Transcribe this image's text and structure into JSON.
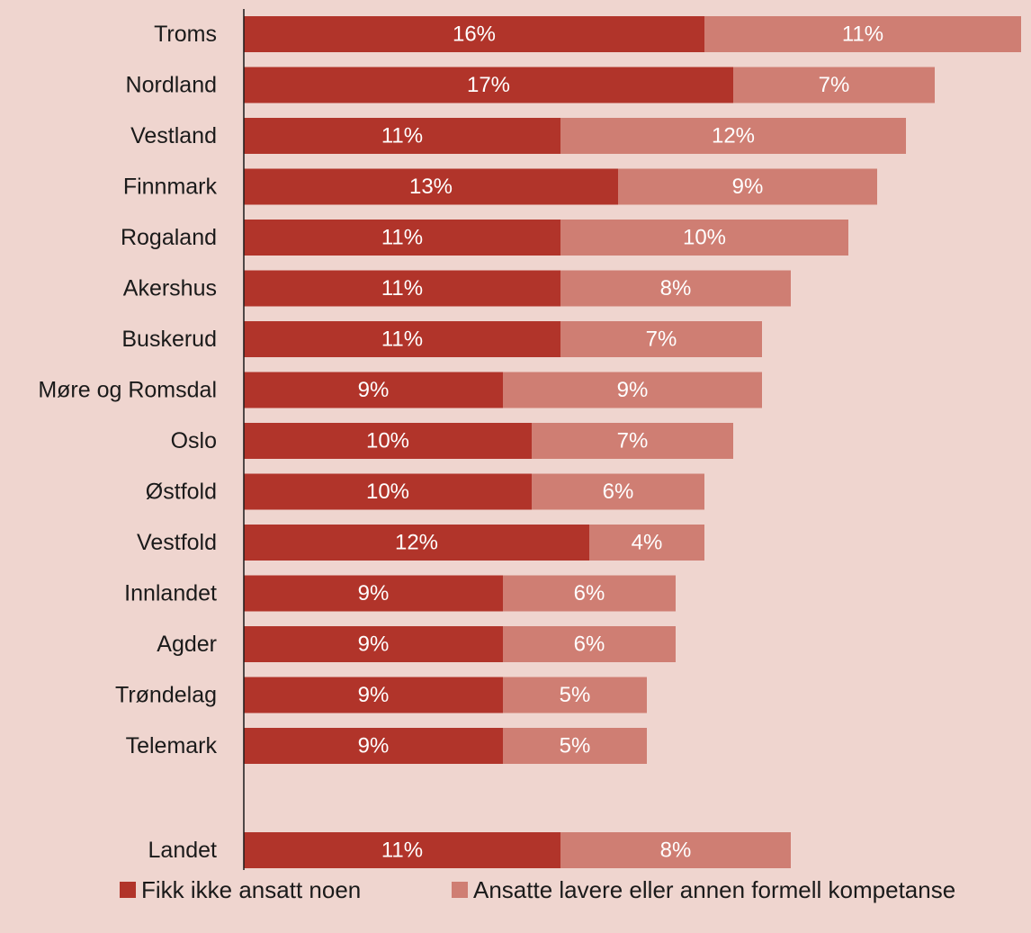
{
  "chart_data": {
    "type": "bar",
    "orientation": "horizontal",
    "stacked": true,
    "categories": [
      "Troms",
      "Nordland",
      "Vestland",
      "Finnmark",
      "Rogaland",
      "Akershus",
      "Buskerud",
      "Møre og Romsdal",
      "Oslo",
      "Østfold",
      "Vestfold",
      "Innlandet",
      "Agder",
      "Trøndelag",
      "Telemark",
      "Landet"
    ],
    "series": [
      {
        "name": "Fikk ikke ansatt noen",
        "color": "#b1342a",
        "values": [
          16,
          17,
          11,
          13,
          11,
          11,
          11,
          9,
          10,
          10,
          12,
          9,
          9,
          9,
          9,
          11
        ],
        "labels": [
          "16%",
          "17%",
          "11%",
          "13%",
          "11%",
          "11%",
          "11%",
          "9%",
          "10%",
          "10%",
          "12%",
          "9%",
          "9%",
          "9%",
          "9%",
          "11%"
        ]
      },
      {
        "name": "Ansatte lavere eller annen formell kompetanse",
        "color": "#cf7e73",
        "values": [
          11,
          7,
          12,
          9,
          10,
          8,
          7,
          9,
          7,
          6,
          4,
          6,
          6,
          5,
          5,
          8
        ],
        "labels": [
          "11%",
          "7%",
          "12%",
          "9%",
          "10%",
          "8%",
          "7%",
          "9%",
          "7%",
          "6%",
          "4%",
          "6%",
          "6%",
          "5%",
          "5%",
          "8%"
        ]
      }
    ],
    "grid": false,
    "legend_position": "bottom",
    "title": "",
    "xlabel": "",
    "ylabel": ""
  }
}
